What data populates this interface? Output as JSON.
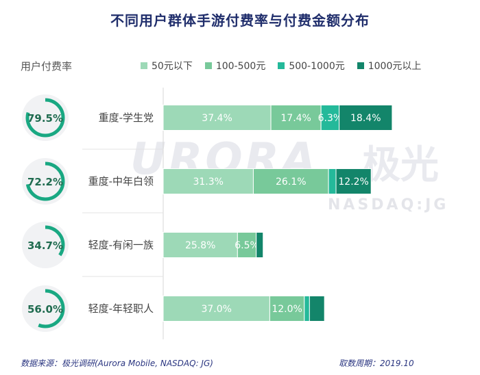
{
  "title": "不同用户群体手游付费率与付费金额分布",
  "rate_label": "用户付费率",
  "watermark": {
    "brand": "URORA",
    "brand_cn": "极光",
    "sub": "NASDAQ:JG"
  },
  "footer": {
    "source": "数据来源：极光调研(Aurora Mobile, NASDAQ: JG)",
    "period": "取数周期：2019.10"
  },
  "colors": {
    "seg1": "#9dd9b7",
    "seg2": "#78c99a",
    "seg3": "#24b99a",
    "seg4": "#13856a",
    "ring": "#19a882",
    "ring_bg": "#f1f2f4"
  },
  "chart_data": {
    "type": "bar",
    "orientation": "horizontal",
    "stacked": true,
    "title": "不同用户群体手游付费率与付费金额分布",
    "categories": [
      "重度-学生党",
      "重度-中年白领",
      "轻度-有闲一族",
      "轻度-年轻职人"
    ],
    "payment_rate": [
      {
        "value": 79.5,
        "label": "79.5%"
      },
      {
        "value": 72.2,
        "label": "72.2%"
      },
      {
        "value": 34.7,
        "label": "34.7%"
      },
      {
        "value": 56.0,
        "label": "56.0%"
      }
    ],
    "series": [
      {
        "name": "50元以下",
        "values": [
          37.4,
          31.3,
          25.8,
          37.0
        ],
        "labels": [
          "37.4%",
          "31.3%",
          "25.8%",
          "37.0%"
        ]
      },
      {
        "name": "100-500元",
        "values": [
          17.4,
          26.1,
          6.5,
          12.0
        ],
        "labels": [
          "17.4%",
          "26.1%",
          "6.5%",
          "12.0%"
        ]
      },
      {
        "name": "500-1000元",
        "values": [
          6.3,
          2.6,
          0.0,
          1.8
        ],
        "labels": [
          "6.3%",
          "",
          "",
          ""
        ]
      },
      {
        "name": "1000元以上",
        "values": [
          18.4,
          12.2,
          2.4,
          5.2
        ],
        "labels": [
          "18.4%",
          "12.2%",
          "",
          ""
        ]
      }
    ],
    "legend_position": "top"
  }
}
